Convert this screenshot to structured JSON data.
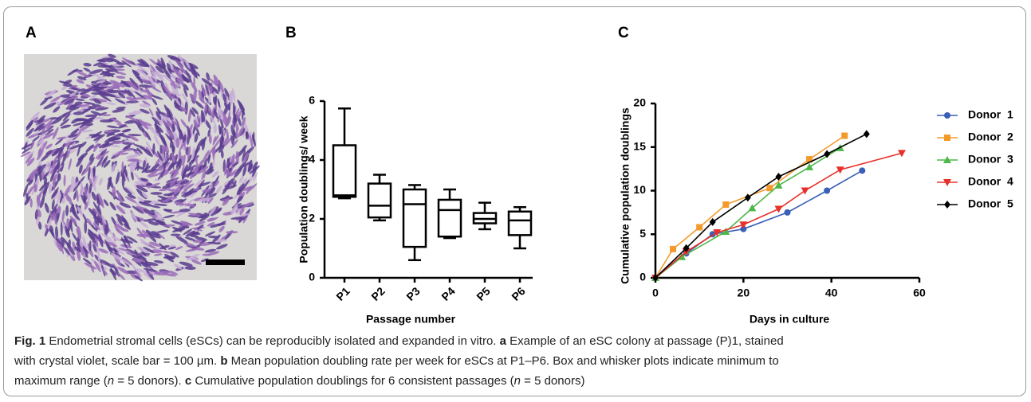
{
  "figure": {
    "panel_labels": [
      "A",
      "B",
      "C"
    ],
    "caption": [
      [
        {
          "text": "Fig. 1",
          "bold": true
        },
        {
          "text": " Endometrial stromal cells (eSCs) can be reproducibly isolated and expanded in vitro. "
        },
        {
          "text": "a",
          "bold": true
        },
        {
          "text": " Example of an eSC colony at passage (P)1, stained"
        }
      ],
      [
        {
          "text": "with crystal violet, scale bar = 100 µm. "
        },
        {
          "text": "b",
          "bold": true
        },
        {
          "text": " Mean population doubling rate per week for eSCs at P1–P6. Box and whisker plots indicate minimum to"
        }
      ],
      [
        {
          "text": "maximum range ("
        },
        {
          "text": "n",
          "italic": true
        },
        {
          "text": " = 5 donors). "
        },
        {
          "text": "c",
          "bold": true
        },
        {
          "text": " Cumulative population doublings for 6 consistent passages ("
        },
        {
          "text": "n",
          "italic": true
        },
        {
          "text": " = 5 donors)"
        }
      ]
    ]
  },
  "chart_data": [
    {
      "type": "box",
      "x_label": "Passage number",
      "y_label": "Population doublings/ week",
      "color": "#000000",
      "categories": [
        "P1",
        "P2",
        "P3",
        "P4",
        "P5",
        "P6"
      ],
      "boxes": [
        {
          "min": 2.7,
          "q1": 2.75,
          "median": 2.8,
          "q3": 4.5,
          "max": 5.75
        },
        {
          "min": 1.95,
          "q1": 2.05,
          "median": 2.45,
          "q3": 3.2,
          "max": 3.5
        },
        {
          "min": 0.6,
          "q1": 1.05,
          "median": 2.5,
          "q3": 3.0,
          "max": 3.15
        },
        {
          "min": 1.35,
          "q1": 1.4,
          "median": 2.3,
          "q3": 2.65,
          "max": 3.0
        },
        {
          "min": 1.65,
          "q1": 1.85,
          "median": 2.0,
          "q3": 2.2,
          "max": 2.55
        },
        {
          "min": 1.0,
          "q1": 1.45,
          "median": 1.95,
          "q3": 2.25,
          "max": 2.4
        }
      ],
      "ylim": [
        0,
        6
      ],
      "yticks": [
        0,
        2,
        4,
        6
      ]
    },
    {
      "type": "line",
      "x_label": "Days in culture",
      "y_label": "Cumulative population doublings",
      "series": [
        {
          "name": "Donor  1",
          "color": "#3a5fb8",
          "marker": "circle",
          "x": [
            0,
            7,
            13,
            20,
            30,
            39,
            47
          ],
          "values": [
            0,
            2.8,
            5,
            5.6,
            7.5,
            10,
            12.3
          ]
        },
        {
          "name": "Donor  2",
          "color": "#f39a2b",
          "marker": "square",
          "x": [
            0,
            4,
            10,
            16,
            26,
            35,
            43
          ],
          "values": [
            0,
            3.3,
            5.8,
            8.4,
            10.3,
            13.6,
            16.3
          ]
        },
        {
          "name": "Donor  3",
          "color": "#4cb848",
          "marker": "triangle",
          "x": [
            0,
            6,
            16,
            22,
            28,
            35,
            42
          ],
          "values": [
            0,
            2.4,
            5.3,
            8,
            10.6,
            12.7,
            14.9
          ]
        },
        {
          "name": "Donor  4",
          "color": "#e8302a",
          "marker": "triangle-down",
          "x": [
            0,
            7,
            14,
            20,
            28,
            34,
            42,
            56
          ],
          "values": [
            0,
            3,
            5.2,
            6.1,
            7.9,
            10,
            12.4,
            14.3
          ]
        },
        {
          "name": "Donor  5",
          "color": "#000000",
          "marker": "diamond",
          "x": [
            0,
            7,
            13,
            21,
            28,
            39,
            48
          ],
          "values": [
            0,
            3.4,
            6.4,
            9.2,
            11.6,
            14.2,
            16.5
          ]
        }
      ],
      "xlim": [
        0,
        60
      ],
      "xticks": [
        0,
        20,
        40,
        60
      ],
      "ylim": [
        0,
        20
      ],
      "yticks": [
        0,
        5,
        10,
        15,
        20
      ]
    }
  ]
}
